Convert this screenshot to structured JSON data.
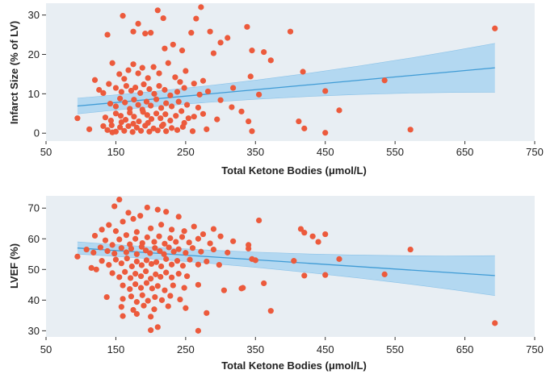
{
  "chart_data": [
    {
      "type": "scatter",
      "title": "",
      "xlabel": "Total Ketone Bodies (μmol/L)",
      "ylabel": "Infarct Size (% of LV)",
      "xlim": [
        50,
        750
      ],
      "ylim": [
        -2,
        33
      ],
      "xticks": [
        50,
        150,
        250,
        350,
        450,
        550,
        650,
        750
      ],
      "yticks": [
        0,
        10,
        20,
        30
      ],
      "colors": {
        "points": "#ec5a3c",
        "fit_line": "#3f9bd5",
        "ci_band": "#a9d4f0",
        "background": "#e8eef3"
      },
      "grid": false,
      "fit": {
        "x0": 95,
        "y0": 6.9,
        "x1": 693,
        "y1": 16.6
      },
      "ci": {
        "lower_start": 4.9,
        "upper_start": 8.9,
        "lower_end": 10.4,
        "upper_end": 22.8
      },
      "points": [
        {
          "x": 160,
          "y": 29.8
        },
        {
          "x": 210,
          "y": 31.2
        },
        {
          "x": 218,
          "y": 29.2
        },
        {
          "x": 265,
          "y": 29.1
        },
        {
          "x": 272,
          "y": 32.0
        },
        {
          "x": 138,
          "y": 25.0
        },
        {
          "x": 175,
          "y": 25.8
        },
        {
          "x": 182,
          "y": 27.8
        },
        {
          "x": 192,
          "y": 25.3
        },
        {
          "x": 200,
          "y": 25.5
        },
        {
          "x": 220,
          "y": 21.5
        },
        {
          "x": 232,
          "y": 22.5
        },
        {
          "x": 245,
          "y": 21.0
        },
        {
          "x": 258,
          "y": 25.5
        },
        {
          "x": 285,
          "y": 25.8
        },
        {
          "x": 300,
          "y": 23.0
        },
        {
          "x": 310,
          "y": 24.2
        },
        {
          "x": 338,
          "y": 27.0
        },
        {
          "x": 345,
          "y": 21.0
        },
        {
          "x": 362,
          "y": 20.6
        },
        {
          "x": 372,
          "y": 18.5
        },
        {
          "x": 400,
          "y": 25.8
        },
        {
          "x": 418,
          "y": 15.6
        },
        {
          "x": 343,
          "y": 14.4
        },
        {
          "x": 355,
          "y": 9.8
        },
        {
          "x": 145,
          "y": 17.8
        },
        {
          "x": 155,
          "y": 15.0
        },
        {
          "x": 162,
          "y": 13.8
        },
        {
          "x": 168,
          "y": 16.0
        },
        {
          "x": 175,
          "y": 17.5
        },
        {
          "x": 182,
          "y": 15.2
        },
        {
          "x": 188,
          "y": 16.6
        },
        {
          "x": 196,
          "y": 14.0
        },
        {
          "x": 204,
          "y": 16.8
        },
        {
          "x": 212,
          "y": 15.2
        },
        {
          "x": 225,
          "y": 17.8
        },
        {
          "x": 235,
          "y": 14.2
        },
        {
          "x": 242,
          "y": 13.0
        },
        {
          "x": 250,
          "y": 15.8
        },
        {
          "x": 262,
          "y": 12.6
        },
        {
          "x": 275,
          "y": 13.3
        },
        {
          "x": 290,
          "y": 20.3
        },
        {
          "x": 120,
          "y": 13.5
        },
        {
          "x": 126,
          "y": 11.0
        },
        {
          "x": 132,
          "y": 10.2
        },
        {
          "x": 140,
          "y": 12.5
        },
        {
          "x": 150,
          "y": 11.5
        },
        {
          "x": 158,
          "y": 10.5
        },
        {
          "x": 165,
          "y": 12.0
        },
        {
          "x": 172,
          "y": 10.8
        },
        {
          "x": 178,
          "y": 11.6
        },
        {
          "x": 185,
          "y": 10.2
        },
        {
          "x": 190,
          "y": 12.4
        },
        {
          "x": 198,
          "y": 11.2
        },
        {
          "x": 205,
          "y": 10.0
        },
        {
          "x": 212,
          "y": 12.0
        },
        {
          "x": 220,
          "y": 11.0
        },
        {
          "x": 228,
          "y": 9.6
        },
        {
          "x": 238,
          "y": 10.5
        },
        {
          "x": 248,
          "y": 11.5
        },
        {
          "x": 270,
          "y": 9.8
        },
        {
          "x": 282,
          "y": 10.6
        },
        {
          "x": 318,
          "y": 11.5
        },
        {
          "x": 142,
          "y": 7.5
        },
        {
          "x": 150,
          "y": 6.8
        },
        {
          "x": 156,
          "y": 8.8
        },
        {
          "x": 163,
          "y": 7.8
        },
        {
          "x": 170,
          "y": 6.2
        },
        {
          "x": 176,
          "y": 8.5
        },
        {
          "x": 182,
          "y": 7.2
        },
        {
          "x": 188,
          "y": 6.0
        },
        {
          "x": 194,
          "y": 8.0
        },
        {
          "x": 200,
          "y": 7.0
        },
        {
          "x": 208,
          "y": 8.6
        },
        {
          "x": 215,
          "y": 6.4
        },
        {
          "x": 222,
          "y": 7.6
        },
        {
          "x": 230,
          "y": 6.8
        },
        {
          "x": 240,
          "y": 8.0
        },
        {
          "x": 252,
          "y": 7.2
        },
        {
          "x": 268,
          "y": 6.5
        },
        {
          "x": 300,
          "y": 8.4
        },
        {
          "x": 316,
          "y": 6.6
        },
        {
          "x": 135,
          "y": 4.0
        },
        {
          "x": 143,
          "y": 3.2
        },
        {
          "x": 150,
          "y": 5.0
        },
        {
          "x": 157,
          "y": 4.4
        },
        {
          "x": 164,
          "y": 3.4
        },
        {
          "x": 170,
          "y": 5.2
        },
        {
          "x": 176,
          "y": 4.2
        },
        {
          "x": 183,
          "y": 3.0
        },
        {
          "x": 189,
          "y": 5.4
        },
        {
          "x": 195,
          "y": 4.6
        },
        {
          "x": 201,
          "y": 3.6
        },
        {
          "x": 208,
          "y": 5.0
        },
        {
          "x": 214,
          "y": 3.8
        },
        {
          "x": 221,
          "y": 4.8
        },
        {
          "x": 228,
          "y": 3.2
        },
        {
          "x": 236,
          "y": 4.4
        },
        {
          "x": 244,
          "y": 5.6
        },
        {
          "x": 254,
          "y": 3.8
        },
        {
          "x": 262,
          "y": 4.2
        },
        {
          "x": 275,
          "y": 4.9
        },
        {
          "x": 295,
          "y": 3.5
        },
        {
          "x": 330,
          "y": 5.5
        },
        {
          "x": 340,
          "y": 3.0
        },
        {
          "x": 132,
          "y": 1.8
        },
        {
          "x": 138,
          "y": 0.8
        },
        {
          "x": 144,
          "y": 2.0
        },
        {
          "x": 150,
          "y": 0.4
        },
        {
          "x": 156,
          "y": 1.5
        },
        {
          "x": 162,
          "y": 0.6
        },
        {
          "x": 168,
          "y": 1.8
        },
        {
          "x": 174,
          "y": 0.3
        },
        {
          "x": 180,
          "y": 1.4
        },
        {
          "x": 186,
          "y": 0.6
        },
        {
          "x": 192,
          "y": 1.9
        },
        {
          "x": 198,
          "y": 0.4
        },
        {
          "x": 204,
          "y": 1.2
        },
        {
          "x": 210,
          "y": 0.7
        },
        {
          "x": 216,
          "y": 1.8
        },
        {
          "x": 222,
          "y": 0.5
        },
        {
          "x": 230,
          "y": 1.3
        },
        {
          "x": 238,
          "y": 0.8
        },
        {
          "x": 246,
          "y": 1.6
        },
        {
          "x": 260,
          "y": 0.5
        },
        {
          "x": 280,
          "y": 1.0
        },
        {
          "x": 112,
          "y": 1.0
        },
        {
          "x": 95,
          "y": 3.8
        },
        {
          "x": 145,
          "y": 0.2
        },
        {
          "x": 158,
          "y": 2.8
        },
        {
          "x": 175,
          "y": 2.4
        },
        {
          "x": 196,
          "y": 2.6
        },
        {
          "x": 218,
          "y": 2.2
        },
        {
          "x": 248,
          "y": 2.6
        },
        {
          "x": 345,
          "y": 0.5
        },
        {
          "x": 412,
          "y": 3.0
        },
        {
          "x": 420,
          "y": 1.2
        },
        {
          "x": 450,
          "y": 0.1
        },
        {
          "x": 450,
          "y": 10.7
        },
        {
          "x": 470,
          "y": 5.8
        },
        {
          "x": 535,
          "y": 13.4
        },
        {
          "x": 572,
          "y": 0.9
        },
        {
          "x": 693,
          "y": 26.6
        }
      ]
    },
    {
      "type": "scatter",
      "title": "",
      "xlabel": "Total Ketone Bodies (μmol/L)",
      "ylabel": "LVEF (%)",
      "xlim": [
        50,
        750
      ],
      "ylim": [
        28,
        74
      ],
      "xticks": [
        50,
        150,
        250,
        350,
        450,
        550,
        650,
        750
      ],
      "yticks": [
        30,
        40,
        50,
        60,
        70
      ],
      "colors": {
        "points": "#ec5a3c",
        "fit_line": "#3f9bd5",
        "ci_band": "#a9d4f0",
        "background": "#e8eef3"
      },
      "grid": false,
      "fit": {
        "x0": 95,
        "y0": 57.0,
        "x1": 693,
        "y1": 48.0
      },
      "ci": {
        "lower_start": 55.0,
        "upper_start": 59.0,
        "lower_end": 41.5,
        "upper_end": 54.5
      },
      "points": [
        {
          "x": 155,
          "y": 72.8
        },
        {
          "x": 148,
          "y": 70.6
        },
        {
          "x": 168,
          "y": 68.5
        },
        {
          "x": 195,
          "y": 70.2
        },
        {
          "x": 210,
          "y": 69.5
        },
        {
          "x": 222,
          "y": 68.8
        },
        {
          "x": 240,
          "y": 67.2
        },
        {
          "x": 185,
          "y": 67.5
        },
        {
          "x": 175,
          "y": 66.5
        },
        {
          "x": 160,
          "y": 65.6
        },
        {
          "x": 140,
          "y": 64.5
        },
        {
          "x": 130,
          "y": 63.0
        },
        {
          "x": 150,
          "y": 62.5
        },
        {
          "x": 165,
          "y": 61.2
        },
        {
          "x": 180,
          "y": 62.2
        },
        {
          "x": 200,
          "y": 63.4
        },
        {
          "x": 215,
          "y": 64.6
        },
        {
          "x": 230,
          "y": 63.0
        },
        {
          "x": 248,
          "y": 62.5
        },
        {
          "x": 262,
          "y": 64.0
        },
        {
          "x": 275,
          "y": 61.5
        },
        {
          "x": 290,
          "y": 63.2
        },
        {
          "x": 355,
          "y": 66.0
        },
        {
          "x": 120,
          "y": 61.0
        },
        {
          "x": 135,
          "y": 59.5
        },
        {
          "x": 145,
          "y": 58.0
        },
        {
          "x": 155,
          "y": 59.8
        },
        {
          "x": 170,
          "y": 58.2
        },
        {
          "x": 178,
          "y": 60.0
        },
        {
          "x": 188,
          "y": 58.6
        },
        {
          "x": 195,
          "y": 60.5
        },
        {
          "x": 205,
          "y": 59.0
        },
        {
          "x": 212,
          "y": 60.8
        },
        {
          "x": 220,
          "y": 58.4
        },
        {
          "x": 228,
          "y": 60.2
        },
        {
          "x": 236,
          "y": 59.0
        },
        {
          "x": 245,
          "y": 60.6
        },
        {
          "x": 255,
          "y": 58.8
        },
        {
          "x": 268,
          "y": 60.0
        },
        {
          "x": 285,
          "y": 58.5
        },
        {
          "x": 300,
          "y": 60.8
        },
        {
          "x": 318,
          "y": 59.2
        },
        {
          "x": 340,
          "y": 58.0
        },
        {
          "x": 95,
          "y": 54.2
        },
        {
          "x": 108,
          "y": 56.5
        },
        {
          "x": 118,
          "y": 55.5
        },
        {
          "x": 128,
          "y": 57.2
        },
        {
          "x": 138,
          "y": 56.0
        },
        {
          "x": 148,
          "y": 55.2
        },
        {
          "x": 158,
          "y": 57.0
        },
        {
          "x": 165,
          "y": 55.6
        },
        {
          "x": 172,
          "y": 56.8
        },
        {
          "x": 180,
          "y": 55.0
        },
        {
          "x": 187,
          "y": 57.4
        },
        {
          "x": 193,
          "y": 56.2
        },
        {
          "x": 199,
          "y": 55.3
        },
        {
          "x": 206,
          "y": 57.0
        },
        {
          "x": 213,
          "y": 56.0
        },
        {
          "x": 219,
          "y": 55.0
        },
        {
          "x": 226,
          "y": 57.2
        },
        {
          "x": 233,
          "y": 55.8
        },
        {
          "x": 240,
          "y": 56.6
        },
        {
          "x": 250,
          "y": 55.4
        },
        {
          "x": 260,
          "y": 57.0
        },
        {
          "x": 272,
          "y": 55.8
        },
        {
          "x": 290,
          "y": 56.5
        },
        {
          "x": 310,
          "y": 55.5
        },
        {
          "x": 340,
          "y": 56.8
        },
        {
          "x": 345,
          "y": 53.4
        },
        {
          "x": 115,
          "y": 50.5
        },
        {
          "x": 122,
          "y": 50.0
        },
        {
          "x": 130,
          "y": 52.8
        },
        {
          "x": 140,
          "y": 51.5
        },
        {
          "x": 150,
          "y": 53.2
        },
        {
          "x": 158,
          "y": 52.0
        },
        {
          "x": 166,
          "y": 53.6
        },
        {
          "x": 173,
          "y": 51.0
        },
        {
          "x": 180,
          "y": 52.6
        },
        {
          "x": 187,
          "y": 51.4
        },
        {
          "x": 194,
          "y": 53.0
        },
        {
          "x": 201,
          "y": 51.8
        },
        {
          "x": 208,
          "y": 52.4
        },
        {
          "x": 215,
          "y": 51.0
        },
        {
          "x": 222,
          "y": 53.4
        },
        {
          "x": 230,
          "y": 51.6
        },
        {
          "x": 238,
          "y": 52.8
        },
        {
          "x": 246,
          "y": 51.2
        },
        {
          "x": 256,
          "y": 53.2
        },
        {
          "x": 268,
          "y": 51.6
        },
        {
          "x": 280,
          "y": 52.6
        },
        {
          "x": 298,
          "y": 51.5
        },
        {
          "x": 350,
          "y": 53.0
        },
        {
          "x": 145,
          "y": 48.8
        },
        {
          "x": 155,
          "y": 47.5
        },
        {
          "x": 163,
          "y": 49.2
        },
        {
          "x": 171,
          "y": 47.2
        },
        {
          "x": 178,
          "y": 48.6
        },
        {
          "x": 186,
          "y": 47.8
        },
        {
          "x": 193,
          "y": 49.4
        },
        {
          "x": 200,
          "y": 47.0
        },
        {
          "x": 207,
          "y": 48.4
        },
        {
          "x": 214,
          "y": 47.6
        },
        {
          "x": 222,
          "y": 49.0
        },
        {
          "x": 230,
          "y": 47.4
        },
        {
          "x": 240,
          "y": 48.6
        },
        {
          "x": 252,
          "y": 47.8
        },
        {
          "x": 160,
          "y": 44.8
        },
        {
          "x": 170,
          "y": 43.6
        },
        {
          "x": 178,
          "y": 45.2
        },
        {
          "x": 186,
          "y": 44.0
        },
        {
          "x": 194,
          "y": 45.6
        },
        {
          "x": 202,
          "y": 43.8
        },
        {
          "x": 210,
          "y": 44.6
        },
        {
          "x": 220,
          "y": 43.2
        },
        {
          "x": 232,
          "y": 44.8
        },
        {
          "x": 248,
          "y": 44.0
        },
        {
          "x": 268,
          "y": 45.0
        },
        {
          "x": 305,
          "y": 43.2
        },
        {
          "x": 332,
          "y": 44.0
        },
        {
          "x": 362,
          "y": 45.5
        },
        {
          "x": 137,
          "y": 41.0
        },
        {
          "x": 160,
          "y": 40.4
        },
        {
          "x": 172,
          "y": 41.2
        },
        {
          "x": 180,
          "y": 39.4
        },
        {
          "x": 188,
          "y": 41.6
        },
        {
          "x": 196,
          "y": 39.8
        },
        {
          "x": 206,
          "y": 41.0
        },
        {
          "x": 216,
          "y": 40.0
        },
        {
          "x": 228,
          "y": 41.4
        },
        {
          "x": 242,
          "y": 40.2
        },
        {
          "x": 158,
          "y": 37.8
        },
        {
          "x": 175,
          "y": 36.8
        },
        {
          "x": 190,
          "y": 38.2
        },
        {
          "x": 205,
          "y": 37.0
        },
        {
          "x": 225,
          "y": 38.0
        },
        {
          "x": 250,
          "y": 37.4
        },
        {
          "x": 160,
          "y": 34.8
        },
        {
          "x": 180,
          "y": 35.5
        },
        {
          "x": 200,
          "y": 34.6
        },
        {
          "x": 280,
          "y": 35.8
        },
        {
          "x": 372,
          "y": 36.5
        },
        {
          "x": 210,
          "y": 31.2
        },
        {
          "x": 200,
          "y": 30.2
        },
        {
          "x": 268,
          "y": 30.0
        },
        {
          "x": 330,
          "y": 43.8
        },
        {
          "x": 405,
          "y": 52.8
        },
        {
          "x": 415,
          "y": 63.2
        },
        {
          "x": 420,
          "y": 62.0
        },
        {
          "x": 432,
          "y": 60.8
        },
        {
          "x": 440,
          "y": 59.0
        },
        {
          "x": 450,
          "y": 61.5
        },
        {
          "x": 420,
          "y": 48.0
        },
        {
          "x": 450,
          "y": 48.2
        },
        {
          "x": 470,
          "y": 53.4
        },
        {
          "x": 535,
          "y": 48.4
        },
        {
          "x": 572,
          "y": 56.5
        },
        {
          "x": 693,
          "y": 32.5
        }
      ]
    }
  ]
}
